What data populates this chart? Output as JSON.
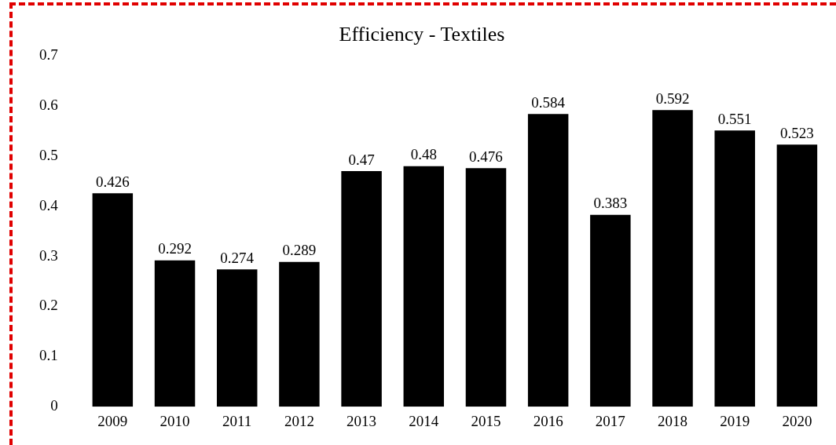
{
  "chart_data": {
    "type": "bar",
    "title": "Efficiency - Textiles",
    "categories": [
      "2009",
      "2010",
      "2011",
      "2012",
      "2013",
      "2014",
      "2015",
      "2016",
      "2017",
      "2018",
      "2019",
      "2020"
    ],
    "values": [
      0.426,
      0.292,
      0.274,
      0.289,
      0.47,
      0.48,
      0.476,
      0.584,
      0.383,
      0.592,
      0.551,
      0.523
    ],
    "color": "#000000",
    "ylim": [
      0,
      0.7
    ],
    "yticks": [
      0,
      0.1,
      0.2,
      0.3,
      0.4,
      0.5,
      0.6,
      0.7
    ],
    "grid": false,
    "legend": false,
    "data_labels": true
  }
}
